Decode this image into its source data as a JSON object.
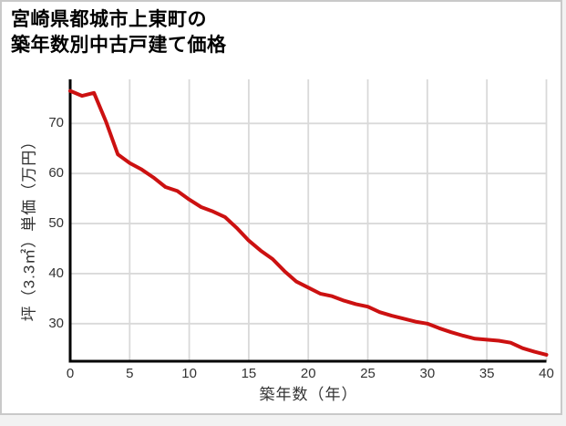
{
  "page": {
    "background": "#f2f2f2",
    "card_background": "#ffffff",
    "card_border_color": "#c9c9c9"
  },
  "title": {
    "line1": "宮崎県都城市上東町の",
    "line2": "築年数別中古戸建て価格"
  },
  "chart_data": {
    "type": "line",
    "title": "宮崎県都城市上東町の築年数別中古戸建て価格",
    "xlabel": "築年数（年）",
    "ylabel": "坪（3.3㎡）単価（万円）",
    "x": [
      0,
      1,
      2,
      3,
      4,
      5,
      6,
      7,
      8,
      9,
      10,
      11,
      12,
      13,
      14,
      15,
      16,
      17,
      18,
      19,
      20,
      21,
      22,
      23,
      24,
      25,
      26,
      27,
      28,
      29,
      30,
      31,
      32,
      33,
      34,
      35,
      36,
      37,
      38,
      39,
      40
    ],
    "values": [
      76.5,
      75.5,
      76.1,
      70.4,
      63.8,
      62.1,
      60.8,
      59.2,
      57.3,
      56.5,
      54.8,
      53.3,
      52.4,
      51.3,
      49.1,
      46.6,
      44.6,
      42.9,
      40.5,
      38.4,
      37.2,
      36.0,
      35.5,
      34.6,
      33.9,
      33.4,
      32.3,
      31.6,
      31.0,
      30.4,
      30.0,
      29.1,
      28.3,
      27.6,
      27.0,
      26.8,
      26.6,
      26.2,
      25.1,
      24.4,
      23.8
    ],
    "xticks": [
      0,
      5,
      10,
      15,
      20,
      25,
      30,
      35,
      40
    ],
    "yticks": [
      30,
      40,
      50,
      60,
      70
    ],
    "xlim": [
      0,
      40
    ],
    "ylim": [
      22.5,
      78.8
    ],
    "grid": true,
    "legend": "none",
    "line_color": "#cc1111",
    "grid_color": "#d9d9d9",
    "axis_color": "#000000",
    "tick_color": "#333333"
  }
}
